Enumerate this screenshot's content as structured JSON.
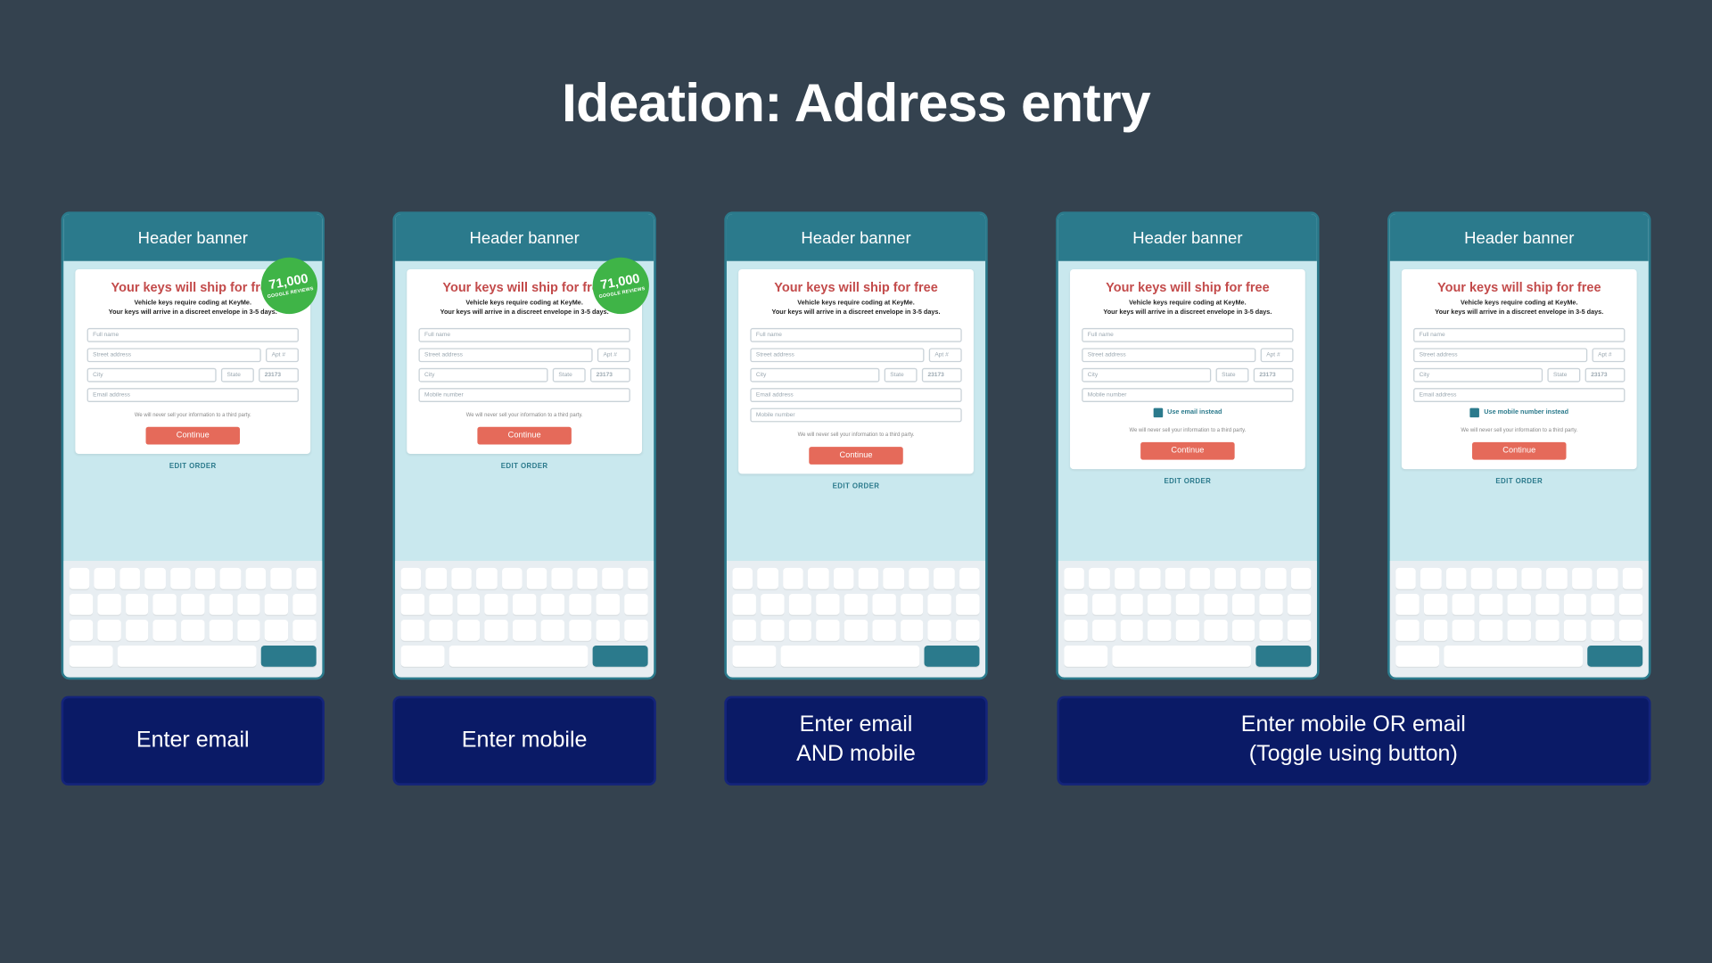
{
  "page": {
    "title": "Ideation: Address entry",
    "background": "#34424f"
  },
  "common": {
    "header_banner": "Header banner",
    "badge_number": "71,000",
    "badge_sub": "GOOGLE REVIEWS",
    "card_title": "Your keys will ship for free",
    "card_sub_line1": "Vehicle keys require coding at KeyMe.",
    "card_sub_line2": "Your keys will arrive in a discreet envelope in 3-5 days.",
    "placeholders": {
      "full_name": "Full name",
      "street": "Street address",
      "apt": "Apt #",
      "city": "City",
      "state": "State",
      "zip_value": "23173",
      "email": "Email address",
      "mobile": "Mobile number"
    },
    "privacy": "We will never sell your information to a third party.",
    "continue": "Continue",
    "edit_order": "EDIT ORDER",
    "toggle_email": "Use email instead",
    "toggle_mobile": "Use mobile number instead"
  },
  "options": [
    {
      "id": "email",
      "label": "Enter email",
      "has_badge": true,
      "fields": [
        "full_name",
        "address",
        "city_row",
        "email"
      ],
      "toggle": null
    },
    {
      "id": "mobile",
      "label": "Enter mobile",
      "has_badge": true,
      "fields": [
        "full_name",
        "address",
        "city_row",
        "mobile"
      ],
      "toggle": null
    },
    {
      "id": "both",
      "label": "Enter email\nAND mobile",
      "has_badge": false,
      "fields": [
        "full_name",
        "address",
        "city_row",
        "email",
        "mobile"
      ],
      "toggle": null
    },
    {
      "id": "toggle1",
      "has_badge": false,
      "fields": [
        "full_name",
        "address",
        "city_row",
        "mobile"
      ],
      "toggle": "email"
    },
    {
      "id": "toggle2",
      "has_badge": false,
      "fields": [
        "full_name",
        "address",
        "city_row",
        "email"
      ],
      "toggle": "mobile"
    }
  ],
  "combined_label": "Enter mobile OR email\n(Toggle using button)",
  "styling": {
    "phone_border": "#2b7a8c",
    "phone_bg": "#c9e8ee",
    "header_bg": "#2b7a8c",
    "badge_bg": "#3fb447",
    "title_color": "#c34b4b",
    "continue_bg": "#e56a5a",
    "option_bg": "#0a1a66",
    "option_border": "#14247a",
    "keyboard_bg": "#e8eef2",
    "key_bg": "#ffffff",
    "enter_key_bg": "#2b7a8c"
  }
}
